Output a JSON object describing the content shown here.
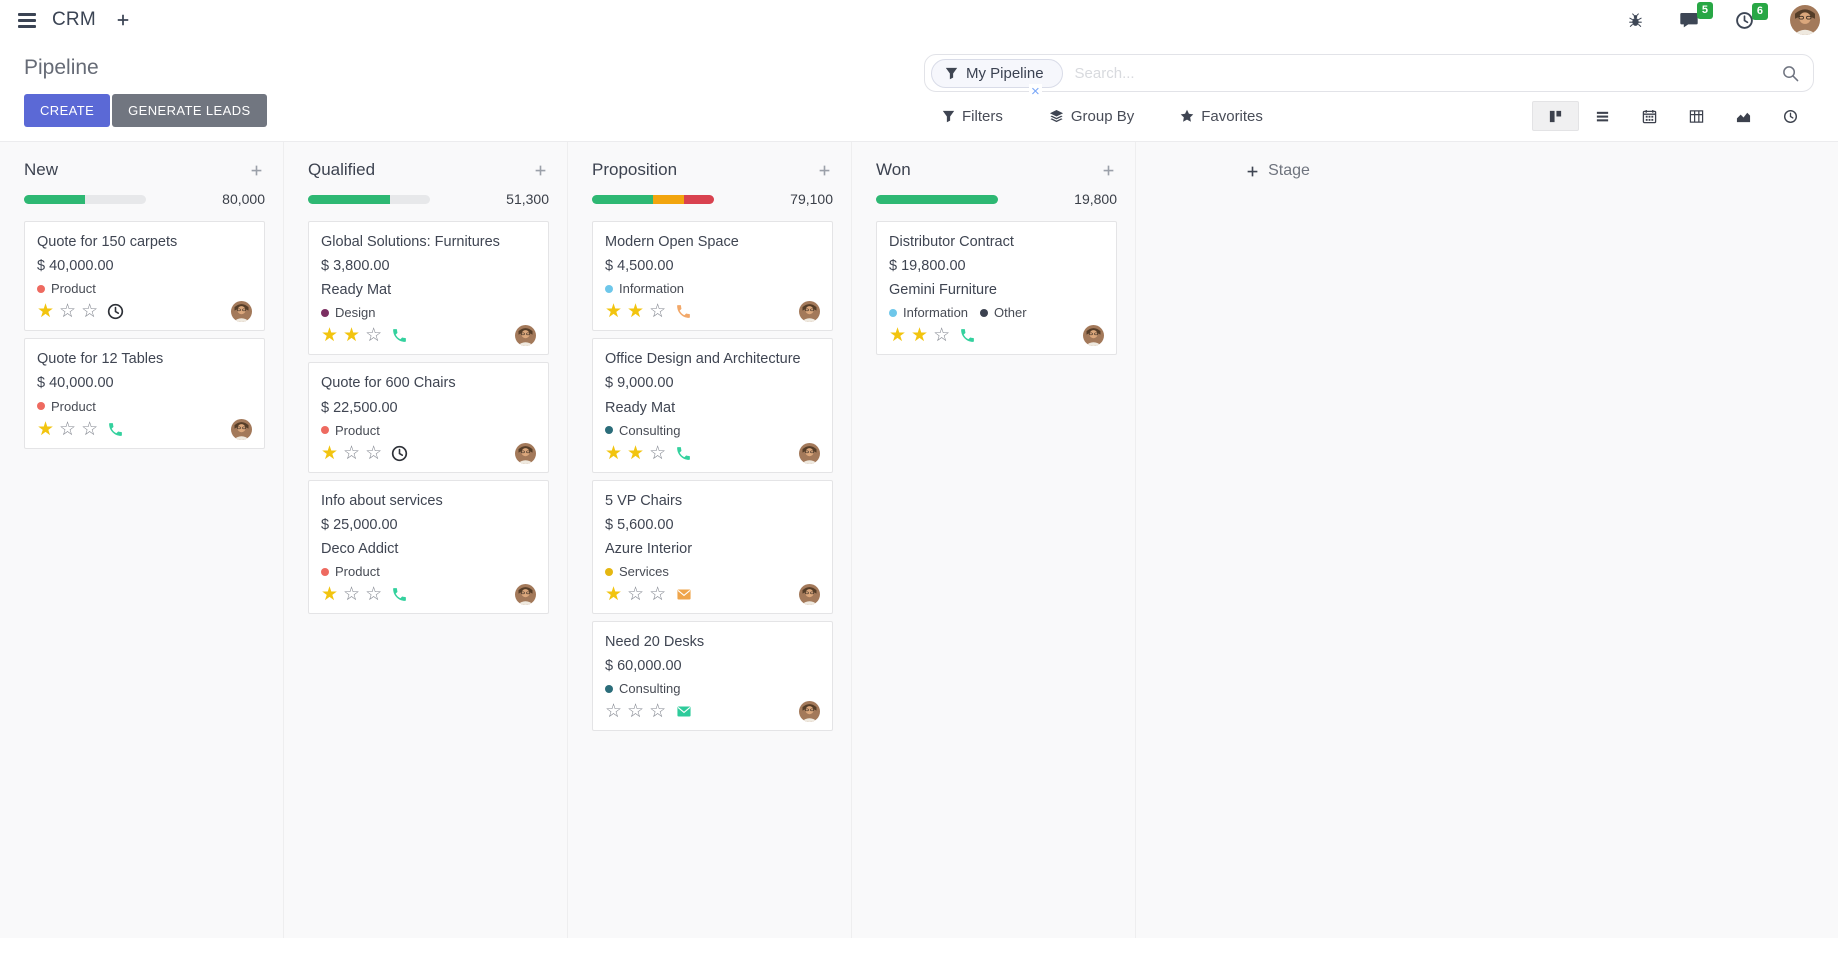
{
  "navbar": {
    "app_label": "CRM",
    "message_count": "5",
    "activity_count": "6"
  },
  "control_panel": {
    "title": "Pipeline",
    "buttons": {
      "create": "CREATE",
      "generate_leads": "GENERATE LEADS"
    },
    "search": {
      "facet_label": "My Pipeline",
      "facet_remove": "×",
      "placeholder": "Search..."
    },
    "menus": {
      "filters": "Filters",
      "group_by": "Group By",
      "favorites": "Favorites"
    }
  },
  "view_switcher": [
    "kanban",
    "list",
    "calendar",
    "pivot",
    "graph",
    "activity"
  ],
  "board": {
    "add_stage_label": "Stage",
    "max_stars": 3,
    "columns": [
      {
        "name": "New",
        "total": "80,000",
        "progress": [
          {
            "color": "#2eb873",
            "pct": 50
          }
        ],
        "cards": [
          {
            "title": "Quote for 150 carpets",
            "amount": "$ 40,000.00",
            "tags": [
              {
                "label": "Product",
                "color": "#ee6a60"
              }
            ],
            "stars": 1,
            "activity": {
              "icon": "clock",
              "color": "#2e3138"
            }
          },
          {
            "title": "Quote for 12 Tables",
            "amount": "$ 40,000.00",
            "tags": [
              {
                "label": "Product",
                "color": "#ee6a60"
              }
            ],
            "stars": 1,
            "activity": {
              "icon": "phone",
              "color": "#34d19e"
            }
          }
        ]
      },
      {
        "name": "Qualified",
        "total": "51,300",
        "progress": [
          {
            "color": "#2eb873",
            "pct": 67
          }
        ],
        "cards": [
          {
            "title": "Global Solutions: Furnitures",
            "amount": "$ 3,800.00",
            "partner": "Ready Mat",
            "tags": [
              {
                "label": "Design",
                "color": "#7c2f62"
              }
            ],
            "stars": 2,
            "activity": {
              "icon": "phone",
              "color": "#34d19e"
            }
          },
          {
            "title": "Quote for 600 Chairs",
            "amount": "$ 22,500.00",
            "tags": [
              {
                "label": "Product",
                "color": "#ee6a60"
              }
            ],
            "stars": 1,
            "activity": {
              "icon": "clock",
              "color": "#2e3138"
            }
          },
          {
            "title": "Info about services",
            "amount": "$ 25,000.00",
            "partner": "Deco Addict",
            "tags": [
              {
                "label": "Product",
                "color": "#ee6a60"
              }
            ],
            "stars": 1,
            "activity": {
              "icon": "phone",
              "color": "#34d19e"
            }
          }
        ]
      },
      {
        "name": "Proposition",
        "total": "79,100",
        "progress": [
          {
            "color": "#2eb873",
            "pct": 50
          },
          {
            "color": "#f2a50e",
            "pct": 25
          },
          {
            "color": "#d9424f",
            "pct": 25
          }
        ],
        "cards": [
          {
            "title": "Modern Open Space",
            "amount": "$ 4,500.00",
            "tags": [
              {
                "label": "Information",
                "color": "#6ec7ea"
              }
            ],
            "stars": 2,
            "activity": {
              "icon": "phone",
              "color": "#f2a869"
            }
          },
          {
            "title": "Office Design and Architecture",
            "amount": "$ 9,000.00",
            "partner": "Ready Mat",
            "tags": [
              {
                "label": "Consulting",
                "color": "#2b6d7a"
              }
            ],
            "stars": 2,
            "activity": {
              "icon": "phone",
              "color": "#34d19e"
            }
          },
          {
            "title": "5 VP Chairs",
            "amount": "$ 5,600.00",
            "partner": "Azure Interior",
            "tags": [
              {
                "label": "Services",
                "color": "#e5b711"
              }
            ],
            "stars": 1,
            "activity": {
              "icon": "envelope",
              "color": "#efa54b"
            }
          },
          {
            "title": "Need 20 Desks",
            "amount": "$ 60,000.00",
            "tags": [
              {
                "label": "Consulting",
                "color": "#2b6d7a"
              }
            ],
            "stars": 0,
            "activity": {
              "icon": "envelope",
              "color": "#2ecb9b"
            }
          }
        ]
      },
      {
        "name": "Won",
        "total": "19,800",
        "progress": [
          {
            "color": "#2eb873",
            "pct": 100
          }
        ],
        "cards": [
          {
            "title": "Distributor Contract",
            "amount": "$ 19,800.00",
            "partner": "Gemini Furniture",
            "tags": [
              {
                "label": "Information",
                "color": "#6ec7ea"
              },
              {
                "label": "Other",
                "color": "#3c4250"
              }
            ],
            "stars": 2,
            "activity": {
              "icon": "phone",
              "color": "#34d19e"
            }
          }
        ]
      }
    ]
  },
  "colors": {
    "primary_button": "#5b69d6",
    "secondary_button": "#717680",
    "badge_green": "#28a745",
    "star_filled": "#f2c40f",
    "progress_green": "#2eb873",
    "progress_orange": "#f2a50e",
    "progress_red": "#d9424f"
  }
}
